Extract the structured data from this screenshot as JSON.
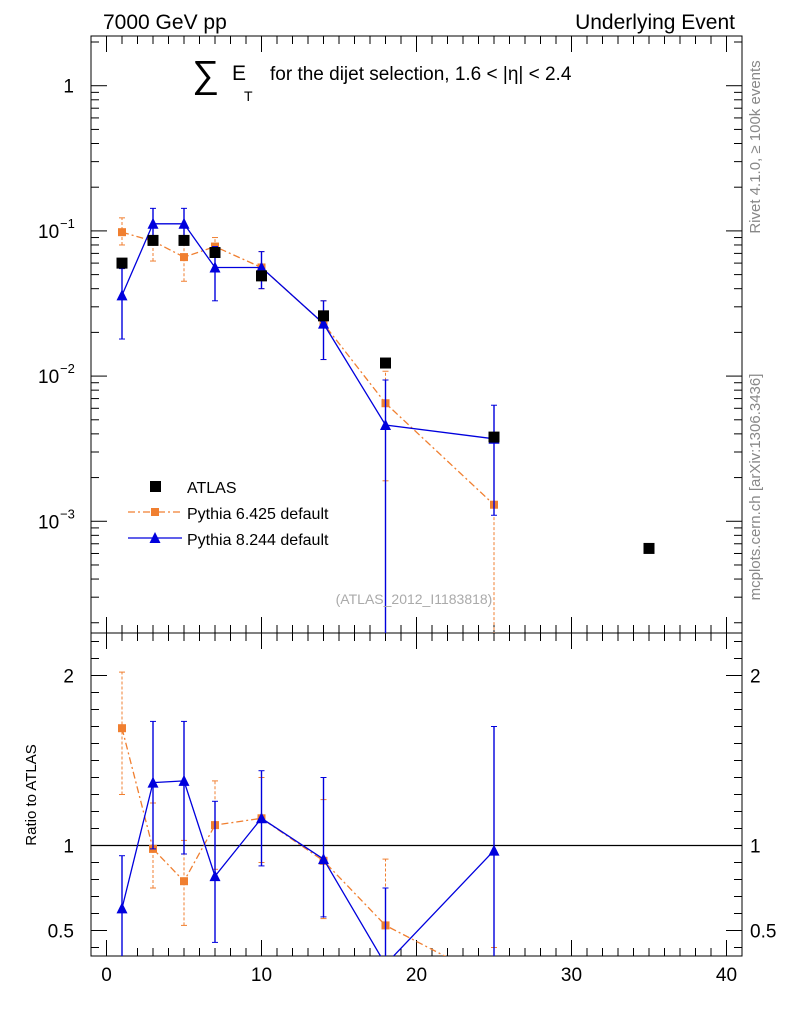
{
  "header": {
    "left": "7000 GeV pp",
    "right": "Underlying Event"
  },
  "title": {
    "prefix": "E",
    "subscript": "T",
    "suffix": "for the dijet selection, 1.6 < |η| < 2.4",
    "sum_symbol": "∑"
  },
  "side_labels": {
    "rivet": "Rivet 4.1.0, ≥ 100k events",
    "mcplots": "mcplots.cern.ch [arXiv:1306.3436]"
  },
  "analysis_tag": "(ATLAS_2012_I1183818)",
  "colors": {
    "atlas": "#000000",
    "py6": "#f07f30",
    "py8": "#0000dd",
    "note": "#aaaaaa",
    "side": "#888888"
  },
  "chart_data": [
    {
      "type": "scatter",
      "panel": "main",
      "yscale": "log",
      "xlim": [
        -1,
        41
      ],
      "ylim": [
        0.00017,
        2.2
      ],
      "y_ticks": [
        {
          "value": 1,
          "label": "1"
        },
        {
          "value": 0.1,
          "label": "10",
          "exp": "−1"
        },
        {
          "value": 0.01,
          "label": "10",
          "exp": "−2"
        },
        {
          "value": 0.001,
          "label": "10",
          "exp": "−3"
        }
      ],
      "legend_position": "bottom-left",
      "series": [
        {
          "name": "ATLAS",
          "key": "atlas",
          "marker": "square",
          "x": [
            1,
            3,
            5,
            7,
            10,
            14,
            18,
            25,
            35
          ],
          "y": [
            0.06,
            0.086,
            0.086,
            0.071,
            0.049,
            0.026,
            0.0123,
            0.0038,
            0.00065
          ]
        },
        {
          "name": "Pythia 6.425 default",
          "key": "py6",
          "marker": "small-square",
          "line": "dash-dot",
          "x": [
            1,
            3,
            5,
            7,
            10,
            14,
            18,
            25
          ],
          "y": [
            0.098,
            0.085,
            0.066,
            0.078,
            0.056,
            0.023,
            0.0065,
            0.0013
          ],
          "y_low": [
            0.08,
            0.062,
            0.045,
            0.066,
            0.04,
            0.013,
            0.0019,
            5e-05
          ],
          "y_high": [
            0.123,
            0.108,
            0.087,
            0.09,
            0.072,
            0.033,
            0.0108,
            0.0037
          ]
        },
        {
          "name": "Pythia 8.244 default",
          "key": "py8",
          "marker": "triangle",
          "line": "solid",
          "x": [
            1,
            3,
            5,
            7,
            10,
            14,
            18,
            25
          ],
          "y": [
            0.036,
            0.112,
            0.112,
            0.056,
            0.056,
            0.023,
            0.0046,
            0.0037
          ],
          "y_low": [
            0.018,
            0.08,
            0.08,
            0.033,
            0.04,
            0.013,
            5e-05,
            0.0011
          ],
          "y_high": [
            0.055,
            0.143,
            0.143,
            0.078,
            0.072,
            0.033,
            0.0094,
            0.0063
          ]
        }
      ]
    },
    {
      "type": "line",
      "panel": "ratio",
      "xlabel": "",
      "ylabel": "Ratio to ATLAS",
      "xlim": [
        -1,
        41
      ],
      "ylim": [
        0.35,
        2.25
      ],
      "x_ticks": [
        0,
        10,
        20,
        30,
        40
      ],
      "y_ticks": [
        {
          "value": 2,
          "label": "2"
        },
        {
          "value": 1,
          "label": "1"
        },
        {
          "value": 0.5,
          "label": "0.5"
        }
      ],
      "reference_line": 1,
      "series": [
        {
          "name": "Pythia 6.425 default",
          "key": "py6",
          "line": "dash-dot",
          "x": [
            1,
            3,
            5,
            7,
            10,
            14,
            18,
            25
          ],
          "y": [
            1.69,
            0.98,
            0.79,
            1.12,
            1.16,
            0.91,
            0.53,
            0.2
          ],
          "y_low": [
            1.3,
            0.75,
            0.53,
            0.86,
            0.9,
            0.57,
            0.2,
            0.05
          ],
          "y_high": [
            2.02,
            1.25,
            1.03,
            1.38,
            1.4,
            1.27,
            0.92,
            0.4
          ]
        },
        {
          "name": "Pythia 8.244 default",
          "key": "py8",
          "line": "solid",
          "x": [
            1,
            3,
            5,
            7,
            10,
            14,
            18,
            25
          ],
          "y": [
            0.63,
            1.37,
            1.38,
            0.82,
            1.16,
            0.92,
            0.3,
            0.97
          ],
          "y_low": [
            0.3,
            0.98,
            0.95,
            0.43,
            0.88,
            0.58,
            0.05,
            0.3
          ],
          "y_high": [
            0.94,
            1.73,
            1.73,
            1.26,
            1.44,
            1.4,
            0.75,
            1.7
          ]
        }
      ]
    }
  ]
}
